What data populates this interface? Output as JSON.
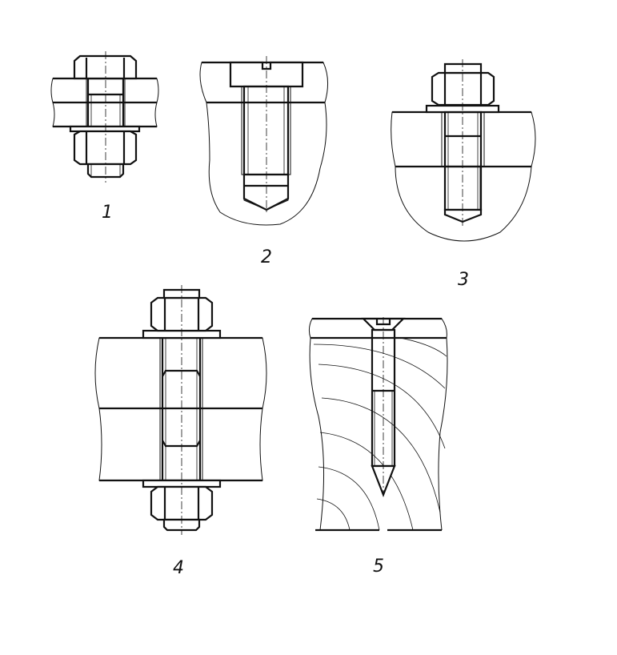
{
  "figures": [
    {
      "id": "fig-1",
      "label": "1"
    },
    {
      "id": "fig-2",
      "label": "2"
    },
    {
      "id": "fig-3",
      "label": "3"
    },
    {
      "id": "fig-4",
      "label": "4"
    },
    {
      "id": "fig-5",
      "label": "5"
    }
  ]
}
